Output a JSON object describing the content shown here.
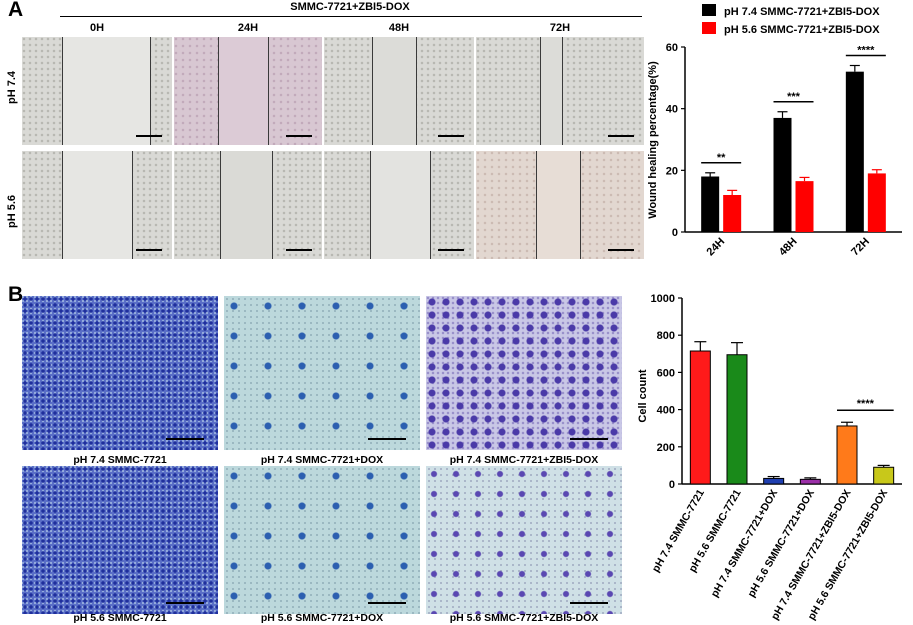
{
  "panel_a": {
    "letter": "A",
    "header": "SMMC-7721+ZBI5-DOX",
    "time_labels": [
      "0H",
      "24H",
      "48H",
      "72H"
    ],
    "row_labels": [
      "pH 7.4",
      "pH 5.6"
    ]
  },
  "panel_b": {
    "letter": "B",
    "captions": [
      "pH 7.4 SMMC-7721",
      "pH 7.4 SMMC-7721+DOX",
      "pH 7.4 SMMC-7721+ZBI5-DOX",
      "pH 5.6 SMMC-7721",
      "pH 5.6 SMMC-7721+DOX",
      "pH 5.6 SMMC-7721+ZBI5-DOX"
    ]
  },
  "chart_data": [
    {
      "type": "bar",
      "categories": [
        "24H",
        "48H",
        "72H"
      ],
      "series": [
        {
          "name": "pH 7.4 SMMC-7721+ZBI5-DOX",
          "color": "#000000",
          "values": [
            18,
            37,
            52
          ],
          "errors": [
            1.2,
            2,
            2
          ]
        },
        {
          "name": "pH 5.6 SMMC-7721+ZBI5-DOX",
          "color": "#ff0000",
          "values": [
            12,
            16.5,
            19
          ],
          "errors": [
            1.5,
            1.2,
            1.2
          ]
        }
      ],
      "ylabel": "Wound healing percentage(%)",
      "ylim": [
        0,
        60
      ],
      "yticks": [
        0,
        20,
        40,
        60
      ],
      "significance": [
        "**",
        "***",
        "****"
      ],
      "legend": "top"
    },
    {
      "type": "bar",
      "categories": [
        "pH 7.4 SMMC-7721",
        "pH 5.6 SMMC-7721",
        "pH 7.4 SMMC-7721+DOX",
        "pH 5.6 SMMC-7721+DOX",
        "pH 7.4 SMMC-7721+ZBI5-DOX",
        "pH 5.6 SMMC-7721+ZBI5-DOX"
      ],
      "values": [
        715,
        695,
        30,
        25,
        312,
        90
      ],
      "errors": [
        50,
        65,
        10,
        8,
        20,
        10
      ],
      "colors": [
        "#ff1a1a",
        "#1a8a1a",
        "#1f3fb0",
        "#9b2fa8",
        "#ff7a1a",
        "#c8c81a"
      ],
      "ylabel": "Cell count",
      "ylim": [
        0,
        1000
      ],
      "yticks": [
        0,
        200,
        400,
        600,
        800,
        1000
      ],
      "significance": [
        "****"
      ]
    }
  ]
}
